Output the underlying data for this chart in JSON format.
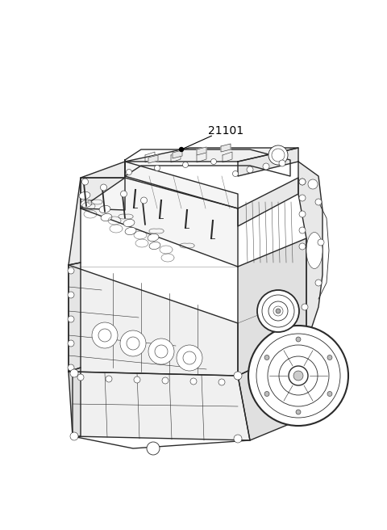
{
  "background_color": "#ffffff",
  "line_color": "#2a2a2a",
  "label_text": "21101",
  "fig_width": 4.8,
  "fig_height": 6.56,
  "dpi": 100
}
